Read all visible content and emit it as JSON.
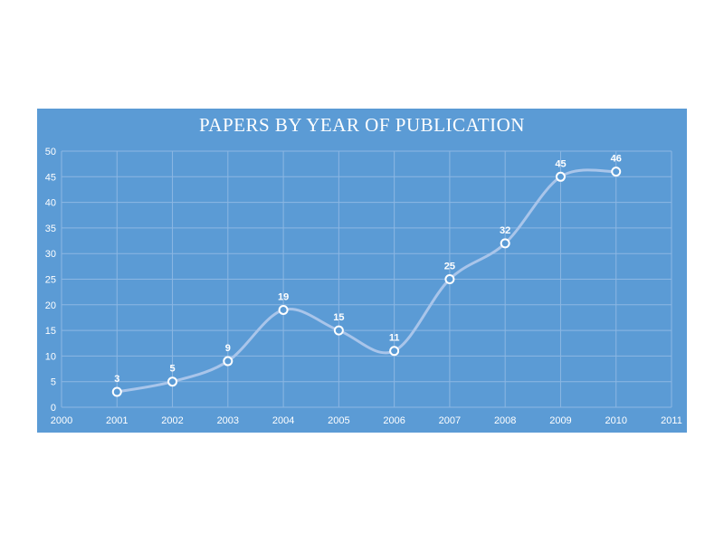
{
  "chart_data": {
    "type": "line",
    "title": "PAPERS BY YEAR OF PUBLICATION",
    "xlabel": "",
    "ylabel": "",
    "x": [
      2001,
      2002,
      2003,
      2004,
      2005,
      2006,
      2007,
      2008,
      2009,
      2010
    ],
    "series": [
      {
        "values": [
          3,
          5,
          9,
          19,
          15,
          11,
          25,
          32,
          45,
          46
        ]
      }
    ],
    "xlim": [
      2000,
      2011
    ],
    "ylim": [
      0,
      50
    ],
    "x_ticks": [
      2000,
      2001,
      2002,
      2003,
      2004,
      2005,
      2006,
      2007,
      2008,
      2009,
      2010,
      2011
    ],
    "y_ticks": [
      0,
      5,
      10,
      15,
      20,
      25,
      30,
      35,
      40,
      45,
      50
    ],
    "grid": true,
    "smooth": true,
    "data_labels": true,
    "colors": {
      "background": "#5b9bd5",
      "line": "#a9c5ea",
      "grid": "#8cb7e3",
      "marker_fill": "#5b9bd5",
      "marker_stroke": "#ffffff",
      "text": "#ffffff"
    }
  }
}
